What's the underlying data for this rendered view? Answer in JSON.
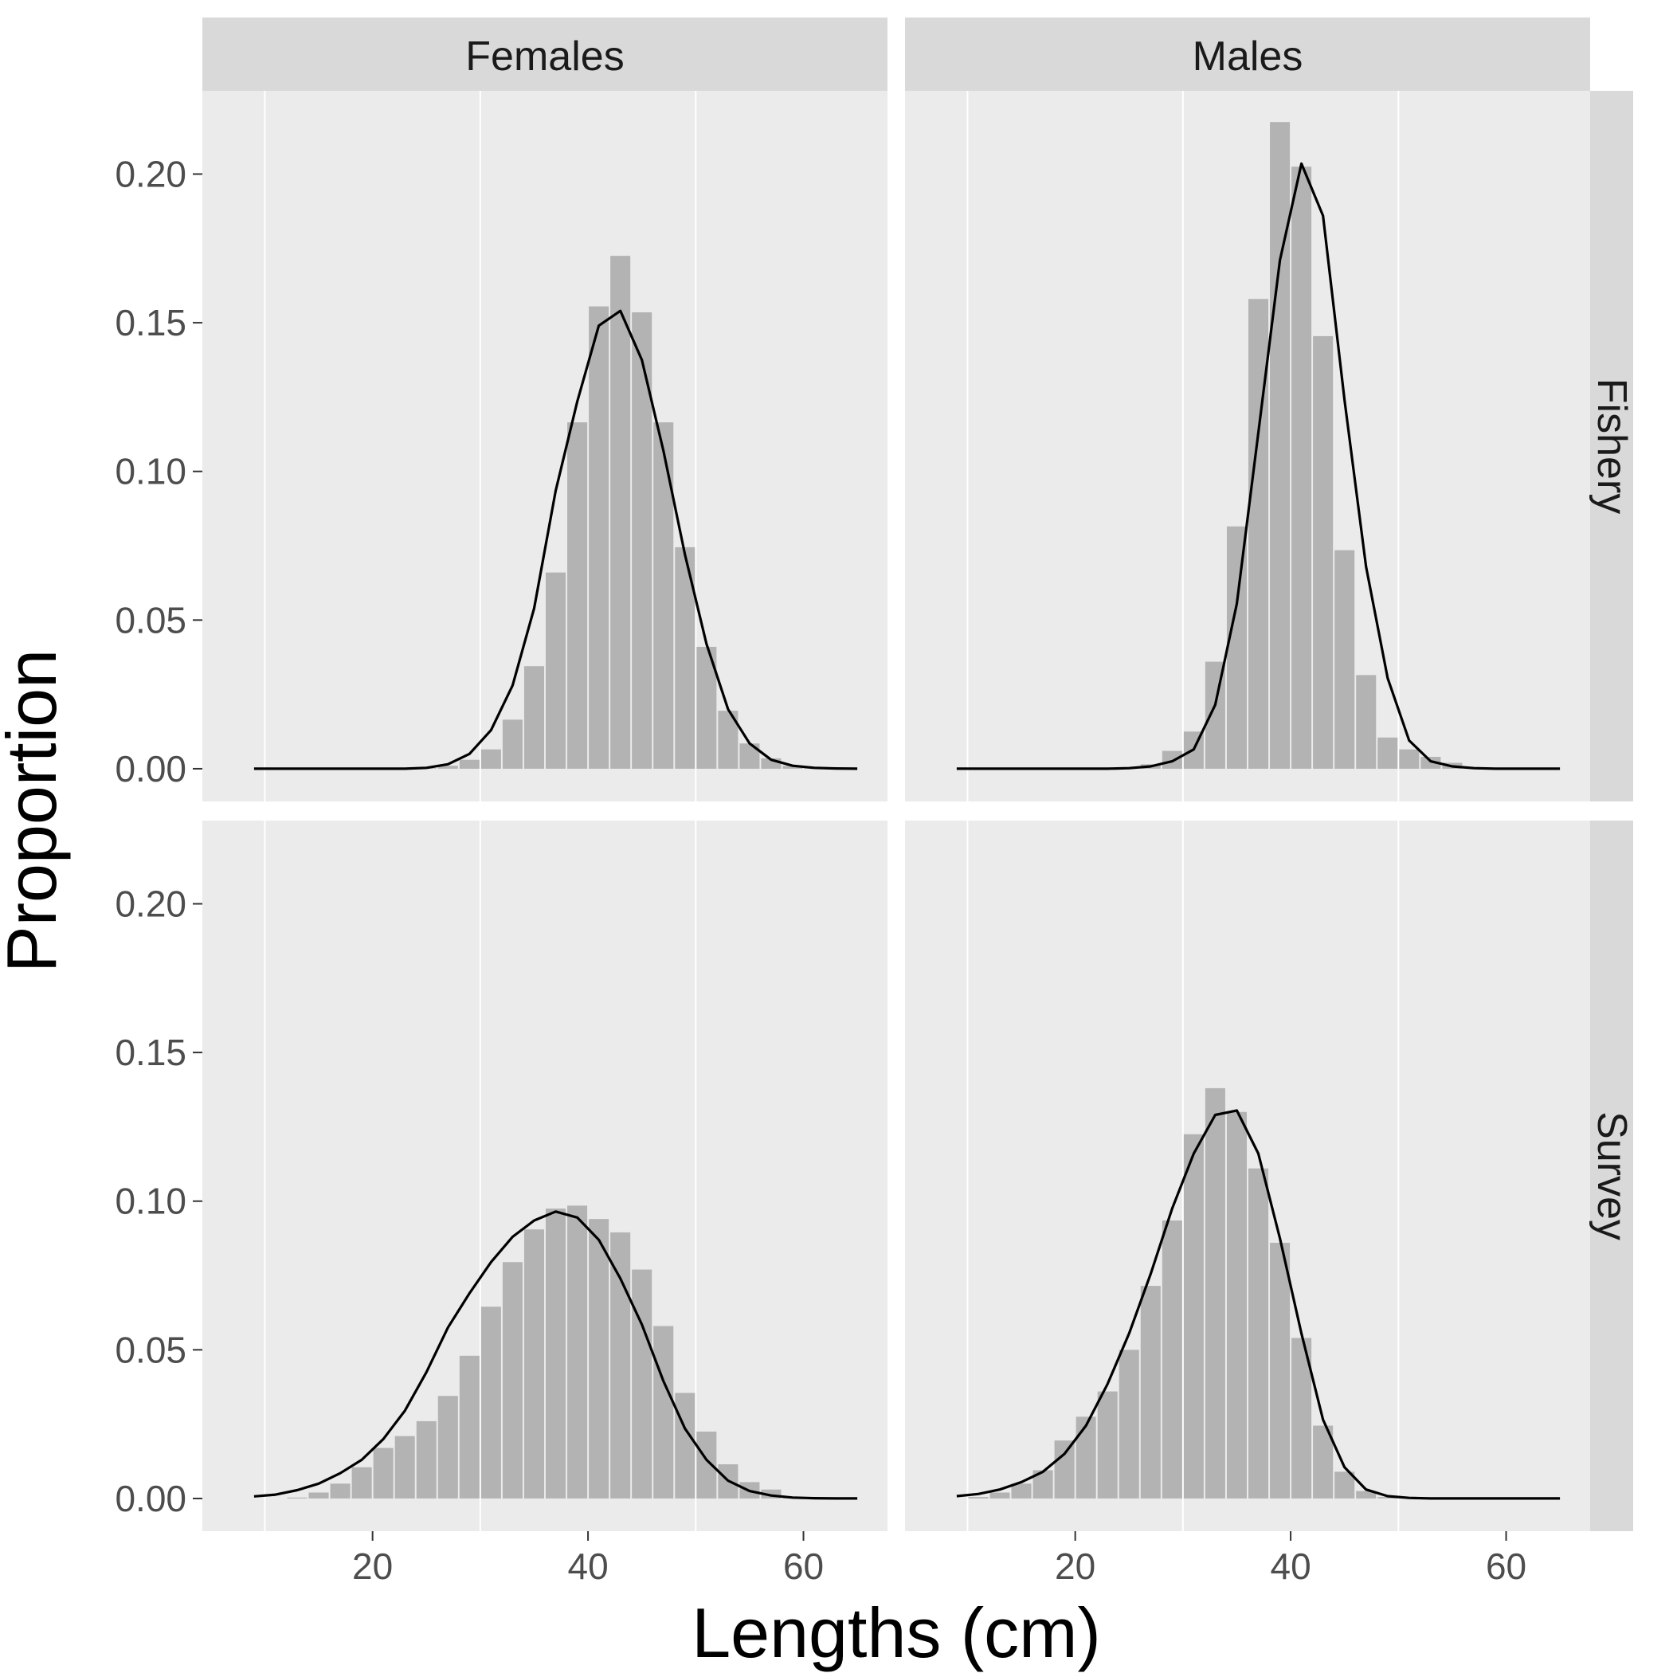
{
  "chart_data": {
    "type": "bar",
    "description_type": "faceted histogram with fitted line",
    "xlabel": "Lengths (cm)",
    "ylabel": "Proportion",
    "x_ticks": [
      20,
      40,
      60
    ],
    "y_ticks": [
      "0.00",
      "0.05",
      "0.10",
      "0.15",
      "0.20"
    ],
    "y_tick_values": [
      0,
      0.05,
      0.1,
      0.15,
      0.2
    ],
    "xlim": [
      4.2,
      67.8
    ],
    "ylim": [
      -0.011,
      0.228
    ],
    "grid": true,
    "colors": {
      "panel_bg": "#ebebeb",
      "strip_bg": "#d9d9d9",
      "bar": "#b3b3b3",
      "line": "#000000",
      "grid": "#ffffff"
    },
    "columns": [
      "Females",
      "Males"
    ],
    "rows": [
      "Fishery",
      "Survey"
    ],
    "bin_centers": [
      9,
      11,
      13,
      15,
      17,
      19,
      21,
      23,
      25,
      27,
      29,
      31,
      33,
      35,
      37,
      39,
      41,
      43,
      45,
      47,
      49,
      51,
      53,
      55,
      57,
      59,
      61,
      63,
      65
    ],
    "panels": [
      {
        "column": "Females",
        "row": "Fishery",
        "observed": [
          0,
          0,
          0,
          0,
          0,
          0,
          0,
          0,
          0.0002,
          0.001,
          0.003,
          0.0065,
          0.0165,
          0.0345,
          0.066,
          0.1165,
          0.1555,
          0.1725,
          0.1535,
          0.1165,
          0.0745,
          0.041,
          0.0195,
          0.0085,
          0.0035,
          0.001,
          0.0003,
          0,
          0
        ],
        "expected": [
          0,
          0,
          0,
          0,
          0,
          0,
          0,
          0,
          0.0003,
          0.0015,
          0.005,
          0.013,
          0.028,
          0.054,
          0.0935,
          0.1235,
          0.149,
          0.154,
          0.1375,
          0.107,
          0.072,
          0.042,
          0.02,
          0.0085,
          0.003,
          0.001,
          0.0003,
          0.0001,
          0
        ]
      },
      {
        "column": "Males",
        "row": "Fishery",
        "observed": [
          0,
          0,
          0,
          0,
          0,
          0,
          0,
          0,
          0.0005,
          0.0015,
          0.006,
          0.0125,
          0.036,
          0.0815,
          0.158,
          0.2175,
          0.2025,
          0.1455,
          0.0735,
          0.0315,
          0.0105,
          0.0065,
          0.004,
          0.002,
          0.0005,
          0,
          0,
          0,
          0
        ],
        "expected": [
          0,
          0,
          0,
          0,
          0,
          0,
          0,
          0,
          0.0002,
          0.0008,
          0.0025,
          0.0065,
          0.0215,
          0.0555,
          0.113,
          0.171,
          0.2035,
          0.186,
          0.124,
          0.068,
          0.0305,
          0.0095,
          0.0025,
          0.0008,
          0.0002,
          0,
          0,
          0,
          0
        ]
      },
      {
        "column": "Females",
        "row": "Survey",
        "observed": [
          0,
          0,
          0.0003,
          0.002,
          0.005,
          0.0105,
          0.017,
          0.021,
          0.026,
          0.0345,
          0.048,
          0.0645,
          0.0795,
          0.0905,
          0.0975,
          0.0985,
          0.094,
          0.0895,
          0.077,
          0.058,
          0.0355,
          0.0225,
          0.0115,
          0.0055,
          0.003,
          0.0005,
          0,
          0,
          0
        ],
        "expected": [
          0.0007,
          0.0013,
          0.0028,
          0.005,
          0.0085,
          0.013,
          0.02,
          0.0295,
          0.0425,
          0.0575,
          0.069,
          0.0795,
          0.088,
          0.0935,
          0.0965,
          0.0945,
          0.087,
          0.074,
          0.0585,
          0.0395,
          0.0235,
          0.013,
          0.006,
          0.0025,
          0.001,
          0.0003,
          0.0001,
          0,
          0
        ]
      },
      {
        "column": "Males",
        "row": "Survey",
        "observed": [
          0,
          0.0005,
          0.002,
          0.005,
          0.0095,
          0.0195,
          0.0275,
          0.036,
          0.05,
          0.0715,
          0.0935,
          0.1225,
          0.138,
          0.13,
          0.111,
          0.086,
          0.054,
          0.0245,
          0.009,
          0.0025,
          0.0005,
          0,
          0,
          0,
          0,
          0,
          0,
          0,
          0
        ],
        "expected": [
          0.0008,
          0.0015,
          0.003,
          0.0055,
          0.009,
          0.015,
          0.0245,
          0.0385,
          0.0555,
          0.0755,
          0.0975,
          0.116,
          0.129,
          0.1305,
          0.116,
          0.0875,
          0.0555,
          0.0265,
          0.0105,
          0.003,
          0.0008,
          0.0002,
          0,
          0,
          0,
          0,
          0,
          0,
          0
        ]
      }
    ]
  }
}
